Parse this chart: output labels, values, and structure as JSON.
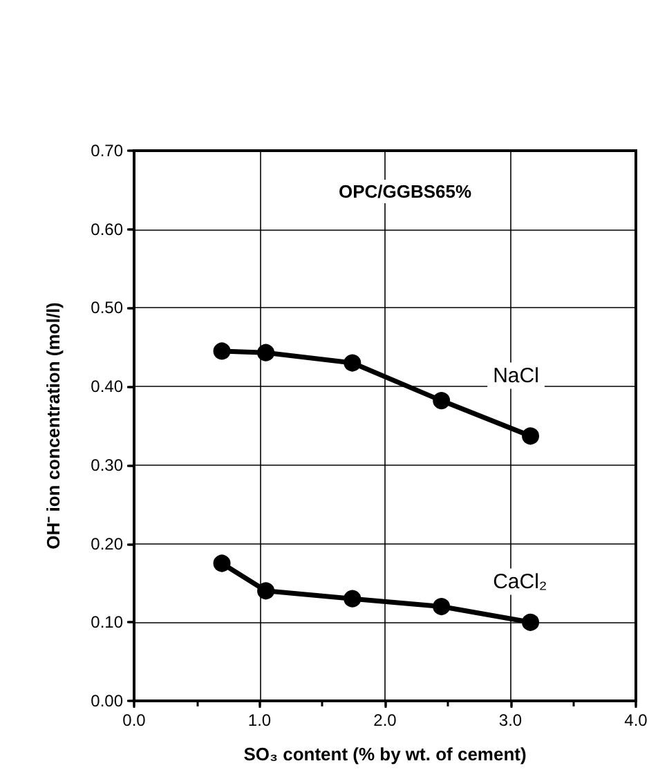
{
  "chart_data": {
    "type": "line",
    "title": "OPC/GGBS65%",
    "xlabel": "SO₃ content (% by wt. of cement)",
    "ylabel": "OH⁻ ion concentration (mol/l)",
    "x": [
      0.7,
      1.05,
      1.74,
      2.45,
      3.16
    ],
    "series": [
      {
        "name": "NaCl",
        "color": "#000000",
        "values": [
          0.445,
          0.443,
          0.43,
          0.382,
          0.337
        ]
      },
      {
        "name": "CaCl₂",
        "color": "#000000",
        "values": [
          0.175,
          0.14,
          0.13,
          0.12,
          0.1
        ]
      }
    ],
    "xlim": [
      0,
      4
    ],
    "xticks": [
      {
        "value": 0,
        "label": "0.0"
      },
      {
        "value": 0.5,
        "label": null
      },
      {
        "value": 1,
        "label": "1.0"
      },
      {
        "value": 1.5,
        "label": null
      },
      {
        "value": 2,
        "label": "2.0"
      },
      {
        "value": 2.5,
        "label": null
      },
      {
        "value": 3,
        "label": "3.0"
      },
      {
        "value": 3.5,
        "label": null
      },
      {
        "value": 4,
        "label": "4.0"
      }
    ],
    "ylim": [
      0,
      0.7
    ],
    "yticks": [
      {
        "value": 0,
        "label": "0.00"
      },
      {
        "value": 0.1,
        "label": "0.10"
      },
      {
        "value": 0.2,
        "label": "0.20"
      },
      {
        "value": 0.3,
        "label": "0.30"
      },
      {
        "value": 0.4,
        "label": "0.40"
      },
      {
        "value": 0.5,
        "label": "0.50"
      },
      {
        "value": 0.6,
        "label": "0.60"
      },
      {
        "value": 0.7,
        "label": "0.70"
      }
    ],
    "grid": true,
    "legend": false,
    "marker": "circle",
    "line_style": "solid"
  }
}
